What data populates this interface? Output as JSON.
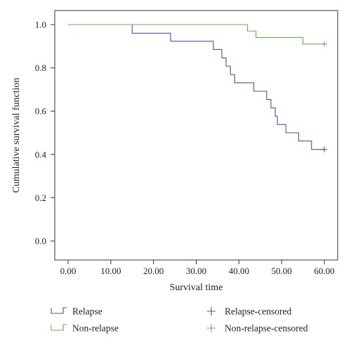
{
  "chart_data": {
    "type": "line",
    "step": true,
    "xlabel": "Survival time",
    "ylabel": "Cumulative survival function",
    "xlim": [
      0,
      60
    ],
    "ylim": [
      0,
      1.0
    ],
    "x_ticks": [
      "0.00",
      "10.00",
      "20.00",
      "30.00",
      "40.00",
      "50.00",
      "60.00"
    ],
    "y_ticks": [
      "0.0",
      "0.2",
      "0.4",
      "0.6",
      "0.8",
      "1.0"
    ],
    "grid": false,
    "legend_position": "bottom",
    "series": [
      {
        "name": "Relapse",
        "color": "#4a50b5",
        "points": [
          [
            0,
            1.0
          ],
          [
            15,
            0.96
          ],
          [
            24,
            0.923
          ],
          [
            34,
            0.885
          ],
          [
            36,
            0.846
          ],
          [
            37,
            0.808
          ],
          [
            38,
            0.769
          ],
          [
            39,
            0.731
          ],
          [
            43.5,
            0.692
          ],
          [
            46.5,
            0.654
          ],
          [
            47.5,
            0.615
          ],
          [
            48.5,
            0.577
          ],
          [
            49,
            0.538
          ],
          [
            51,
            0.5
          ],
          [
            54,
            0.462
          ],
          [
            57,
            0.423
          ],
          [
            60,
            0.423
          ]
        ],
        "censored": [
          [
            60,
            0.423
          ]
        ]
      },
      {
        "name": "Non-relapse",
        "color": "#63b24c",
        "points": [
          [
            0,
            1.0
          ],
          [
            42,
            0.97
          ],
          [
            44,
            0.94
          ],
          [
            55,
            0.91
          ],
          [
            60,
            0.91
          ]
        ],
        "censored": [
          [
            60,
            0.91
          ]
        ]
      }
    ],
    "legend": [
      {
        "label": "Relapse",
        "symbol": "step",
        "color": "#4a50b5"
      },
      {
        "label": "Relapse-censored",
        "symbol": "plus",
        "color": "#4a50b5"
      },
      {
        "label": "Non-relapse",
        "symbol": "step",
        "color": "#63b24c"
      },
      {
        "label": "Non-relapse-censored",
        "symbol": "plus",
        "color": "#63b24c"
      }
    ]
  }
}
